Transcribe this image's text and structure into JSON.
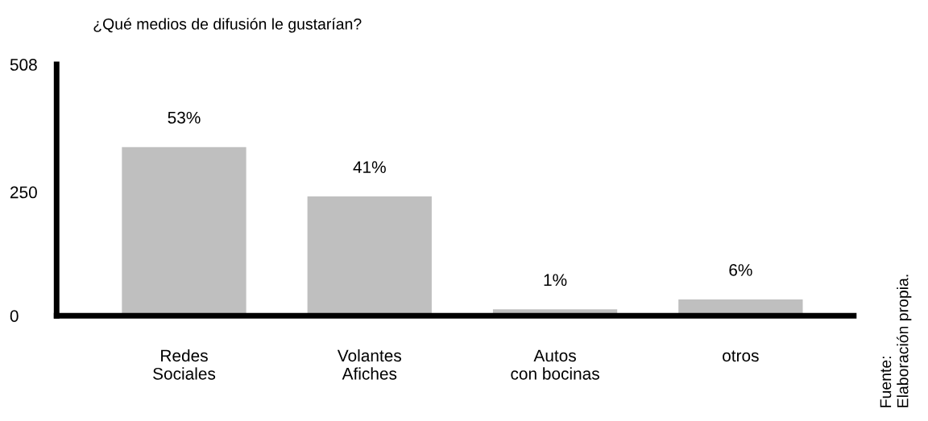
{
  "chart_data": {
    "type": "bar",
    "title": "¿Qué medios de difusión le gustarían?",
    "categories": [
      "Redes\nSociales",
      "Volantes\nAfiches",
      "Autos\ncon bocinas",
      "otros"
    ],
    "values": [
      341,
      241,
      13,
      33
    ],
    "color": "#bfbfbf",
    "ylim": [
      0,
      508
    ],
    "yticks": [
      0,
      250,
      508
    ],
    "grid": false,
    "legend": false,
    "annotations": [
      {
        "text": "53%",
        "x": "Redes\nSociales",
        "y": 341
      },
      {
        "text": "41%",
        "x": "Volantes\nAfiches",
        "y": 241
      },
      {
        "text": "1%",
        "x": "Autos\ncon bocinas",
        "y": 13
      },
      {
        "text": "6%",
        "x": "otros",
        "y": 33
      },
      "Fuente:\nElaboración propia."
    ]
  }
}
